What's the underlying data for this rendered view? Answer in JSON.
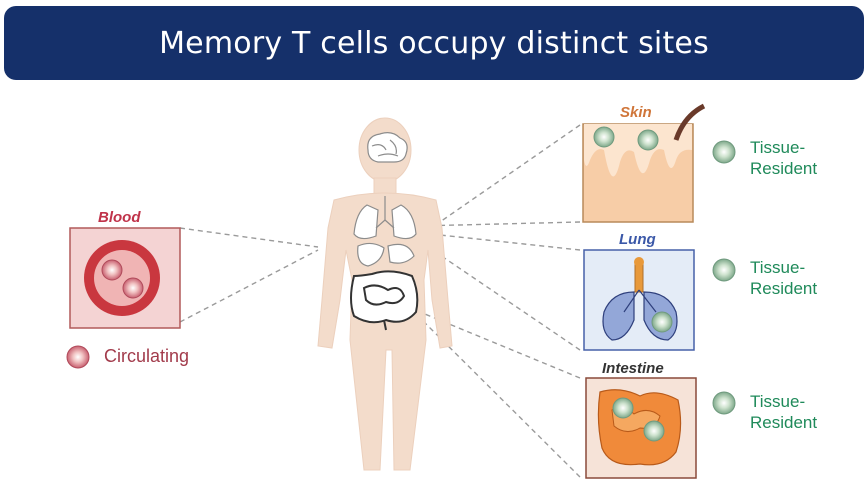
{
  "title": "Memory T cells occupy distinct sites",
  "tissues": {
    "blood": {
      "label": "Blood",
      "legend": "Circulating"
    },
    "skin": {
      "label": "Skin",
      "legend_line1": "Tissue-",
      "legend_line2": "Resident"
    },
    "lung": {
      "label": "Lung",
      "legend_line1": "Tissue-",
      "legend_line2": "Resident"
    },
    "intestine": {
      "label": "Intestine",
      "legend_line1": "Tissue-",
      "legend_line2": "Resident"
    }
  },
  "colors": {
    "banner": "#15306a",
    "blood_label": "#c0334a",
    "circulating_text": "#a23b4b",
    "skin_label": "#d0763a",
    "lung_label": "#3b58a8",
    "resident_text": "#1f8a5a",
    "body": "#f3dccb"
  }
}
